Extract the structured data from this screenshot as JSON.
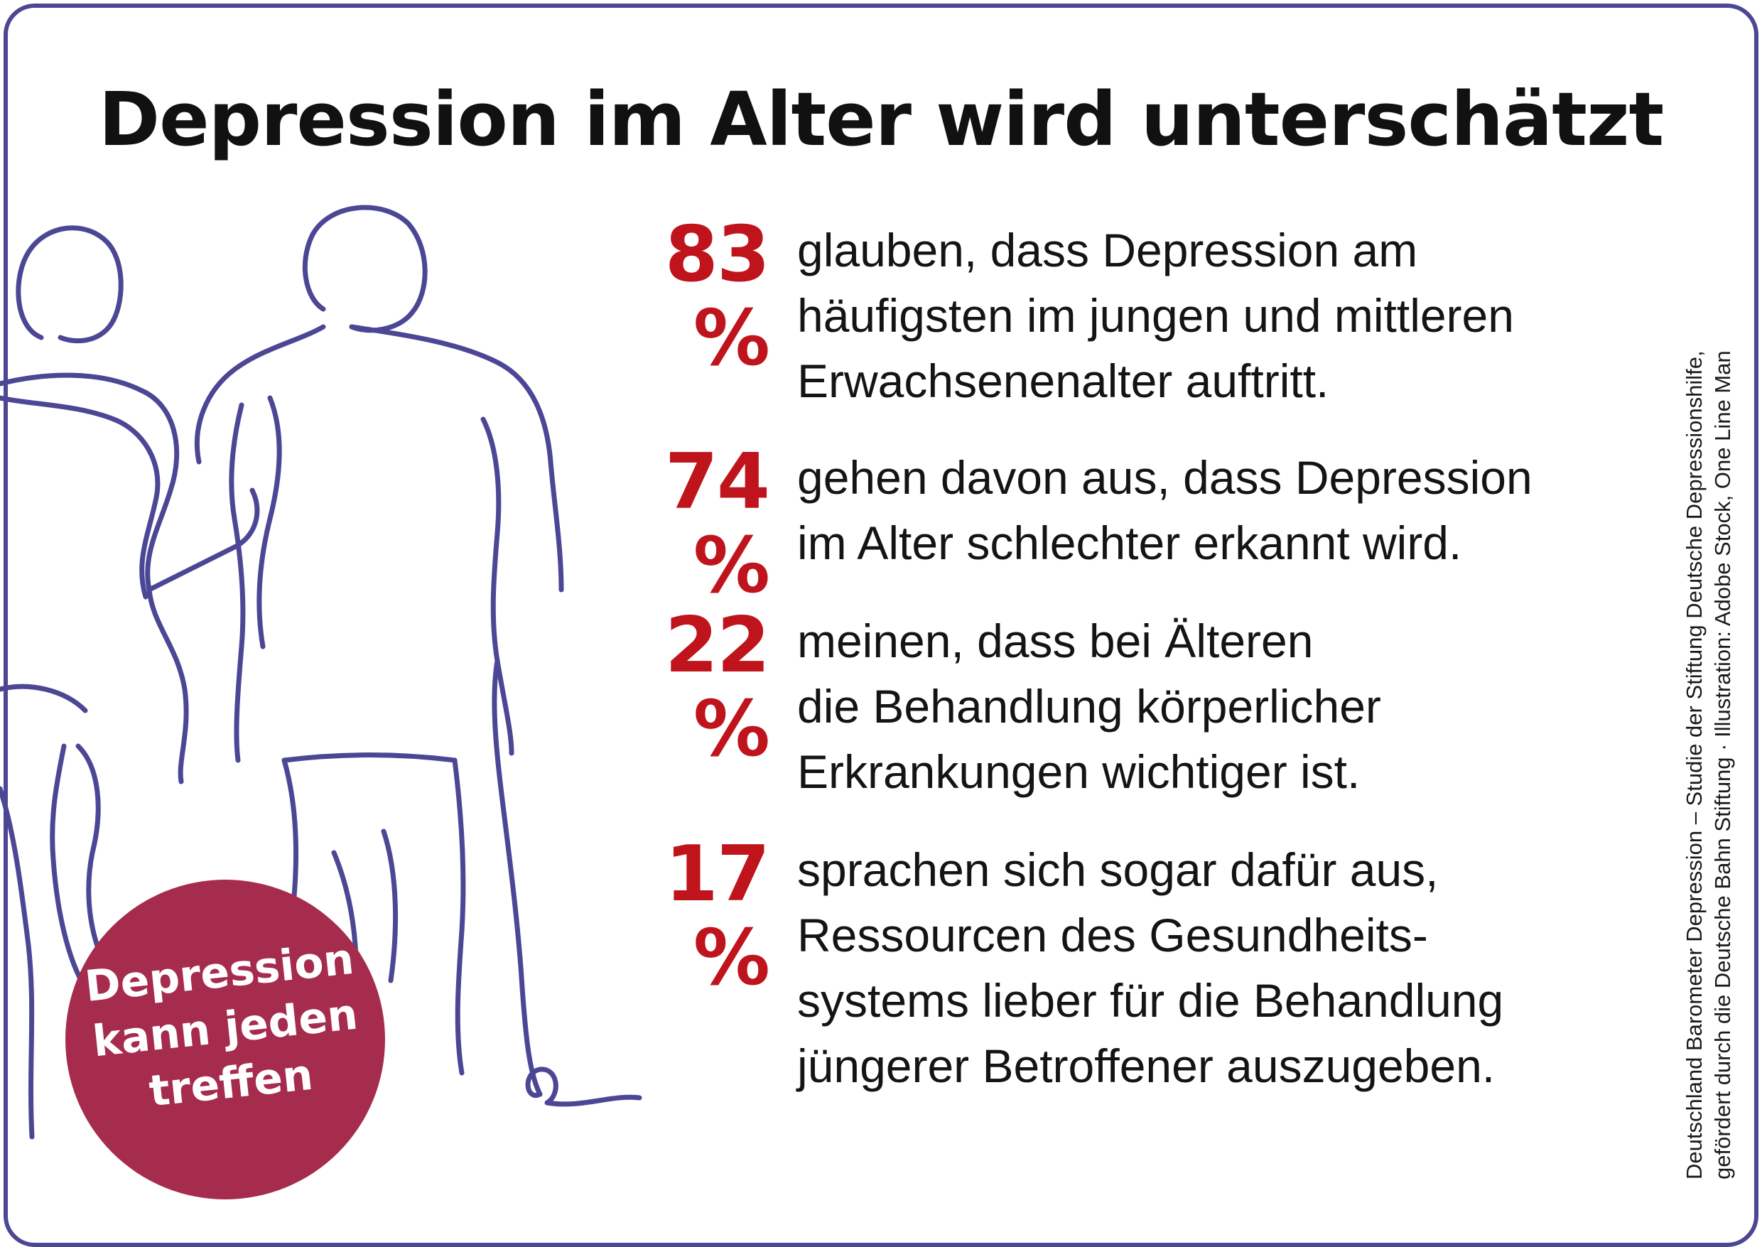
{
  "title": "Depression im Alter wird unterschätzt",
  "stats": [
    {
      "percent": "83 %",
      "lines": [
        "glauben, dass Depression am",
        "häufigsten im jungen und mittleren",
        "Erwachsenenalter auftritt."
      ]
    },
    {
      "percent": "74 %",
      "lines": [
        "gehen davon aus, dass Depression",
        "im Alter schlechter erkannt wird."
      ]
    },
    {
      "percent": "22 %",
      "lines": [
        "meinen, dass bei Älteren",
        "die Behandlung körperlicher",
        "Erkrankungen wichtiger ist."
      ]
    },
    {
      "percent": "17 %",
      "lines": [
        "sprachen sich sogar dafür aus,",
        "Ressourcen des Gesundheits-",
        "systems lieber für die Behandlung",
        "jüngerer Betroffener auszugeben."
      ]
    }
  ],
  "badge": {
    "lines": [
      "Depression",
      "kann jeden",
      "treffen"
    ],
    "color": "#a62c4e"
  },
  "credit": {
    "lines": [
      "Deutschland Barometer Depression – Studie der Stiftung Deutsche Depressionshilfe,",
      "gefördert durch die Deutsche Bahn Stiftung · Illustration: Adobe Stock, One Line Man"
    ]
  },
  "colors": {
    "border": "#4b4794",
    "line_art": "#4b4794",
    "percent": "#c0141d",
    "text": "#141414"
  },
  "illustration": {
    "icon": "two-elderly-people-walking-line-art-icon"
  }
}
